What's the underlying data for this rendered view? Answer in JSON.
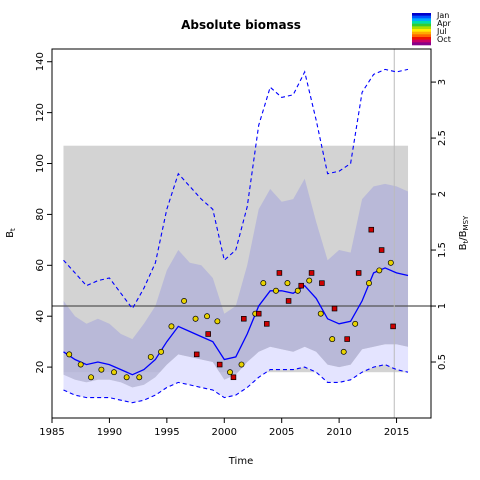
{
  "chart_data": {
    "type": "line",
    "title": "Absolute biomass",
    "xlabel": "Time",
    "ylabel_left": "B_t",
    "ylabel_right": "B_t/B_MSY",
    "xlim": [
      1985,
      2018
    ],
    "ylim": [
      0,
      145
    ],
    "ylim_right_ratio_per_unit": 44,
    "x_ticks": [
      "1985",
      "1990",
      "1995",
      "2000",
      "2005",
      "2010",
      "2015"
    ],
    "y_ticks": [
      "20",
      "40",
      "60",
      "80",
      "100",
      "120",
      "140"
    ],
    "y_right_ticks": [
      "0.5",
      "1",
      "1.5",
      "2",
      "2.5",
      "3"
    ],
    "grey_box": {
      "x0": 1986,
      "x1": 2016,
      "y0": 18,
      "y1": 107
    },
    "bmsy_line": 44,
    "vertical_line_x": 2014.8,
    "years": [
      1986,
      1987,
      1988,
      1989,
      1990,
      1991,
      1992,
      1993,
      1994,
      1995,
      1996,
      1997,
      1998,
      1999,
      2000,
      2001,
      2002,
      2003,
      2004,
      2005,
      2006,
      2007,
      2008,
      2009,
      2010,
      2011,
      2012,
      2013,
      2014,
      2015,
      2016
    ],
    "series": [
      {
        "name": "median",
        "values": [
          26,
          23,
          21,
          22,
          21,
          19,
          17,
          19,
          23,
          30,
          36,
          34,
          32,
          30,
          23,
          24,
          33,
          44,
          50,
          50,
          49,
          52,
          47,
          39,
          37,
          38,
          46,
          57,
          59,
          57,
          56
        ]
      },
      {
        "name": "ci_upper",
        "values": [
          62,
          57,
          52,
          54,
          55,
          49,
          43,
          51,
          61,
          82,
          96,
          91,
          86,
          82,
          62,
          66,
          83,
          115,
          130,
          126,
          127,
          136,
          117,
          96,
          97,
          100,
          128,
          135,
          137,
          136,
          137
        ]
      },
      {
        "name": "ci_lower",
        "values": [
          11,
          9,
          8,
          8,
          8,
          7,
          6,
          7,
          9,
          12,
          14,
          13,
          12,
          11,
          8,
          9,
          12,
          16,
          19,
          19,
          19,
          20,
          18,
          14,
          14,
          15,
          18,
          20,
          21,
          19,
          18
        ]
      },
      {
        "name": "band_upper",
        "values": [
          46,
          40,
          37,
          39,
          37,
          33,
          31,
          37,
          44,
          58,
          66,
          61,
          60,
          55,
          41,
          44,
          60,
          82,
          90,
          85,
          86,
          94,
          77,
          62,
          66,
          65,
          86,
          91,
          92,
          91,
          89
        ]
      },
      {
        "name": "band_lower",
        "values": [
          17,
          15,
          14,
          15,
          15,
          14,
          12,
          13,
          16,
          21,
          25,
          24,
          23,
          22,
          15,
          17,
          22,
          26,
          28,
          27,
          26,
          28,
          26,
          21,
          20,
          21,
          27,
          28,
          29,
          29,
          28
        ]
      }
    ],
    "obs_yellow": [
      [
        1986.5,
        25
      ],
      [
        1987.5,
        21
      ],
      [
        1988.4,
        16
      ],
      [
        1989.3,
        19
      ],
      [
        1990.4,
        18
      ],
      [
        1991.5,
        16
      ],
      [
        1992.6,
        16
      ],
      [
        1993.6,
        24
      ],
      [
        1994.5,
        26
      ],
      [
        1995.4,
        36
      ],
      [
        1996.5,
        46
      ],
      [
        1997.5,
        39
      ],
      [
        1998.5,
        40
      ],
      [
        1999.4,
        38
      ],
      [
        2000.5,
        18
      ],
      [
        2001.5,
        21
      ],
      [
        2002.7,
        41
      ],
      [
        2003.4,
        53
      ],
      [
        2004.5,
        50
      ],
      [
        2005.5,
        53
      ],
      [
        2006.4,
        50
      ],
      [
        2007.4,
        54
      ],
      [
        2008.4,
        41
      ],
      [
        2009.4,
        31
      ],
      [
        2010.4,
        26
      ],
      [
        2011.4,
        37
      ],
      [
        2012.6,
        53
      ],
      [
        2013.5,
        58
      ],
      [
        2014.5,
        61
      ]
    ],
    "obs_red": [
      [
        1997.6,
        25
      ],
      [
        1998.6,
        33
      ],
      [
        1999.6,
        21
      ],
      [
        2000.8,
        16
      ],
      [
        2001.7,
        39
      ],
      [
        2003.0,
        41
      ],
      [
        2003.7,
        37
      ],
      [
        2004.8,
        57
      ],
      [
        2005.6,
        46
      ],
      [
        2006.7,
        52
      ],
      [
        2007.6,
        57
      ],
      [
        2008.5,
        53
      ],
      [
        2009.6,
        43
      ],
      [
        2010.7,
        31
      ],
      [
        2011.7,
        57
      ],
      [
        2012.8,
        74
      ],
      [
        2013.7,
        66
      ],
      [
        2014.7,
        36
      ]
    ],
    "legend": [
      "Jan",
      "Apr",
      "Jul",
      "Oct"
    ],
    "colors": {
      "grey_box": "#d3d3d3",
      "band_fill": "#b4b4d8",
      "ci_fill": "#e4e4ff",
      "median_line": "#0000ff",
      "ci_line": "#0000ff",
      "bmsy_line": "#555555",
      "obs_yellow": "#e8d200",
      "obs_red": "#cc0000"
    }
  }
}
